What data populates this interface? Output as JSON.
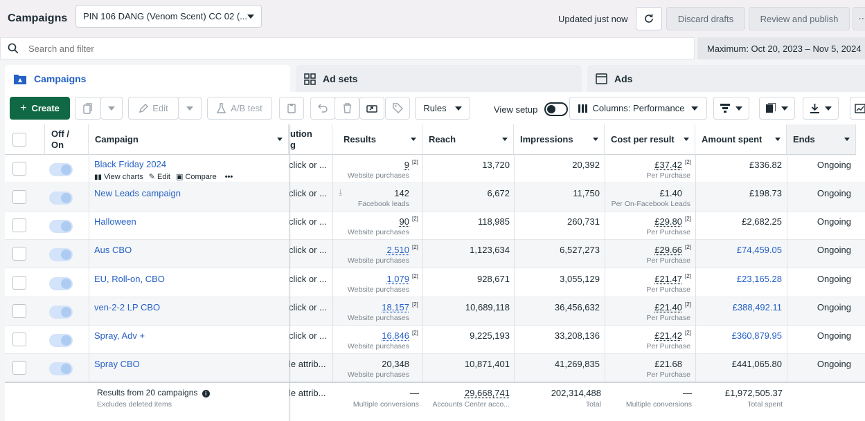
{
  "header": {
    "title": "Campaigns",
    "account": "PIN 106 DANG (Venom Scent) CC 02 (...",
    "updated": "Updated just now",
    "discard": "Discard drafts",
    "review": "Review and publish"
  },
  "search": {
    "placeholder": "Search and filter"
  },
  "date_range": "Maximum: Oct 20, 2023 – Nov 5, 2024",
  "tabs": [
    {
      "label": "Campaigns",
      "active": true
    },
    {
      "label": "Ad sets",
      "active": false
    },
    {
      "label": "Ads",
      "active": false
    }
  ],
  "toolbar": {
    "create": "Create",
    "edit": "Edit",
    "ab_test": "A/B test",
    "rules": "Rules",
    "view_setup": "View setup",
    "columns": "Columns: Performance"
  },
  "columns": {
    "off_on": "Off /",
    "off_on2": "On",
    "campaign": "Campaign",
    "attribution": "ution",
    "attribution2": "g",
    "results": "Results",
    "reach": "Reach",
    "impressions": "Impressions",
    "cost_per_result": "Cost per result",
    "amount_spent": "Amount spent",
    "ends": "Ends"
  },
  "row_actions": {
    "view_charts": "View charts",
    "edit": "Edit",
    "compare": "Compare"
  },
  "rows": [
    {
      "name": "Black Friday 2024",
      "attr": "click or ...",
      "results": "9",
      "results_sup": "[2]",
      "results_sub": "Website purchases",
      "results_link": false,
      "reach": "13,720",
      "impressions": "20,392",
      "cpr": "£37.42",
      "cpr_sup": "[2]",
      "cpr_sub": "Per Purchase",
      "spent": "£336.82",
      "spent_link": false,
      "ends": "Ongoing"
    },
    {
      "name": "New Leads campaign",
      "attr": "click or ...",
      "results": "142",
      "results_sup": "",
      "results_sub": "Facebook leads",
      "results_link": false,
      "reach": "6,672",
      "impressions": "11,750",
      "cpr": "£1.40",
      "cpr_sup": "",
      "cpr_sub": "Per On-Facebook Leads",
      "spent": "£198.73",
      "spent_link": false,
      "ends": "Ongoing"
    },
    {
      "name": "Halloween",
      "attr": "click or ...",
      "results": "90",
      "results_sup": "[2]",
      "results_sub": "Website purchases",
      "results_link": false,
      "reach": "118,985",
      "impressions": "260,731",
      "cpr": "£29.80",
      "cpr_sup": "[2]",
      "cpr_sub": "Per Purchase",
      "spent": "£2,682.25",
      "spent_link": false,
      "ends": "Ongoing"
    },
    {
      "name": "Aus CBO",
      "attr": "click or ...",
      "results": "2,510",
      "results_sup": "[2]",
      "results_sub": "Website purchases",
      "results_link": true,
      "reach": "1,123,634",
      "impressions": "6,527,273",
      "cpr": "£29.66",
      "cpr_sup": "[2]",
      "cpr_sub": "Per Purchase",
      "spent": "£74,459.05",
      "spent_link": true,
      "ends": "Ongoing"
    },
    {
      "name": "EU, Roll-on, CBO",
      "attr": "click or ...",
      "results": "1,079",
      "results_sup": "[2]",
      "results_sub": "Website purchases",
      "results_link": true,
      "reach": "928,671",
      "impressions": "3,055,129",
      "cpr": "£21.47",
      "cpr_sup": "[2]",
      "cpr_sub": "Per Purchase",
      "spent": "£23,165.28",
      "spent_link": true,
      "ends": "Ongoing"
    },
    {
      "name": "ven-2-2 LP CBO",
      "attr": "click or ...",
      "results": "18,157",
      "results_sup": "[2]",
      "results_sub": "Website purchases",
      "results_link": true,
      "reach": "10,689,118",
      "impressions": "36,456,632",
      "cpr": "£21.40",
      "cpr_sup": "[2]",
      "cpr_sub": "Per Purchase",
      "spent": "£388,492.11",
      "spent_link": true,
      "ends": "Ongoing"
    },
    {
      "name": "Spray, Adv +",
      "attr": "click or ...",
      "results": "16,846",
      "results_sup": "[2]",
      "results_sub": "Website purchases",
      "results_link": true,
      "reach": "9,225,193",
      "impressions": "33,208,136",
      "cpr": "£21.42",
      "cpr_sup": "[2]",
      "cpr_sub": "Per Purchase",
      "spent": "£360,879.95",
      "spent_link": true,
      "ends": "Ongoing"
    },
    {
      "name": "Spray CBO",
      "attr": "le attrib...",
      "results": "20,348",
      "results_sup": "",
      "results_sub": "Website purchases",
      "results_link": false,
      "reach": "10,871,401",
      "impressions": "41,269,835",
      "cpr": "£21.68",
      "cpr_sup": "",
      "cpr_sub": "Per Purchase",
      "spent": "£441,065.80",
      "spent_link": false,
      "ends": "Ongoing"
    }
  ],
  "footer": {
    "label": "Results from 20 campaigns",
    "sub": "Excludes deleted items",
    "attr": "le attrib...",
    "results": "—",
    "results_sub": "Multiple conversions",
    "reach": "29,668,741",
    "reach_sub": "Accounts Center acco...",
    "impressions": "202,314,488",
    "impressions_sub": "Total",
    "cpr": "—",
    "cpr_sub": "Multiple conversions",
    "spent": "£1,972,505.37",
    "spent_sub": "Total spent"
  },
  "colors": {
    "primary_green": "#106844",
    "link_blue": "#2561c6"
  }
}
